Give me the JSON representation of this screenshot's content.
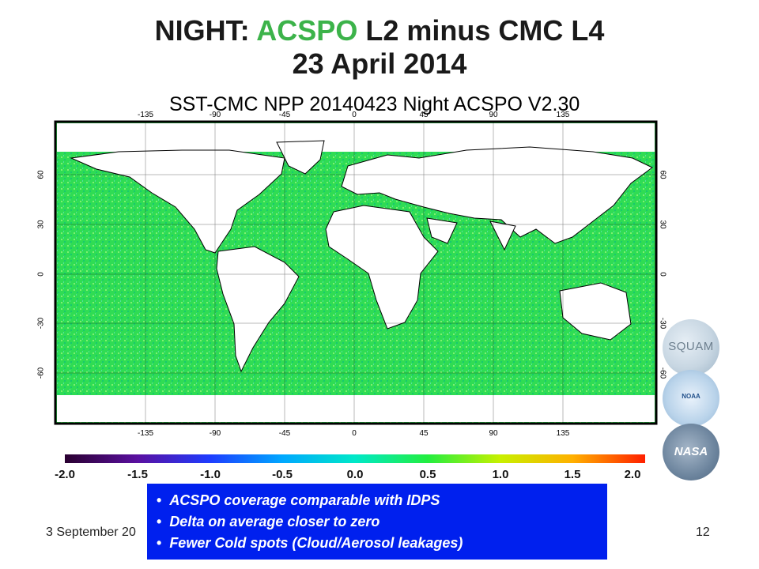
{
  "slide": {
    "title_line1_prefix": "NIGHT: ",
    "title_line1_accent": "ACSPO",
    "title_line1_suffix": " L2 minus CMC L4",
    "title_line2": "23 April 2014"
  },
  "map": {
    "subtitle": "SST-CMC  NPP  20140423  Night ACSPO V2.30",
    "lon_ticks": [
      "-135",
      "-90",
      "-45",
      "0",
      "45",
      "90",
      "135"
    ],
    "lat_ticks": [
      "60",
      "30",
      "0",
      "-30",
      "-60"
    ]
  },
  "colorbar": {
    "labels": [
      "-2.0",
      "-1.5",
      "-1.0",
      "-0.5",
      "0.0",
      "0.5",
      "1.0",
      "1.5",
      "2.0"
    ],
    "colors": [
      "#2a0030",
      "#5a10a0",
      "#1e3cff",
      "#00a8ff",
      "#00e8c8",
      "#22ee40",
      "#c8f000",
      "#ffb000",
      "#ff2000"
    ]
  },
  "logos": {
    "squam": "SQUAM",
    "noaa": "NOAA",
    "nasa": "NASA"
  },
  "notes": [
    "ACSPO coverage comparable with IDPS",
    "Delta on average closer to zero",
    "Fewer Cold spots (Cloud/Aerosol leakages)"
  ],
  "footer": {
    "date": "3 September 20",
    "page": "12"
  },
  "colors": {
    "accent": "#3cb34a",
    "notes_bg": "#0020ee",
    "ocean": "#2fdc54",
    "land": "#ffffff"
  }
}
